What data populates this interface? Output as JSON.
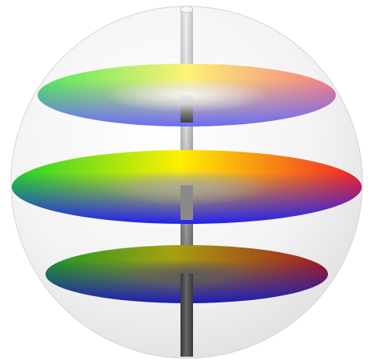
{
  "diagram": {
    "kind": "color-solid-sphere",
    "discs": [
      {
        "name": "top-disc",
        "level": "light"
      },
      {
        "name": "middle-disc",
        "level": "medium"
      },
      {
        "name": "bottom-disc",
        "level": "dark"
      }
    ],
    "axis": {
      "gradient": [
        "#eeeeee",
        "#d0d0d0",
        "#7f7f7f",
        "#3e3e3e"
      ]
    },
    "colors": {
      "hue_green": "#22dd22",
      "hue_yellow": "#ffee00",
      "hue_red": "#ee2222",
      "hue_blue": "#2222ee",
      "sphere_fill": "#eeeeee",
      "sphere_edge": "#d4d4d4"
    }
  }
}
